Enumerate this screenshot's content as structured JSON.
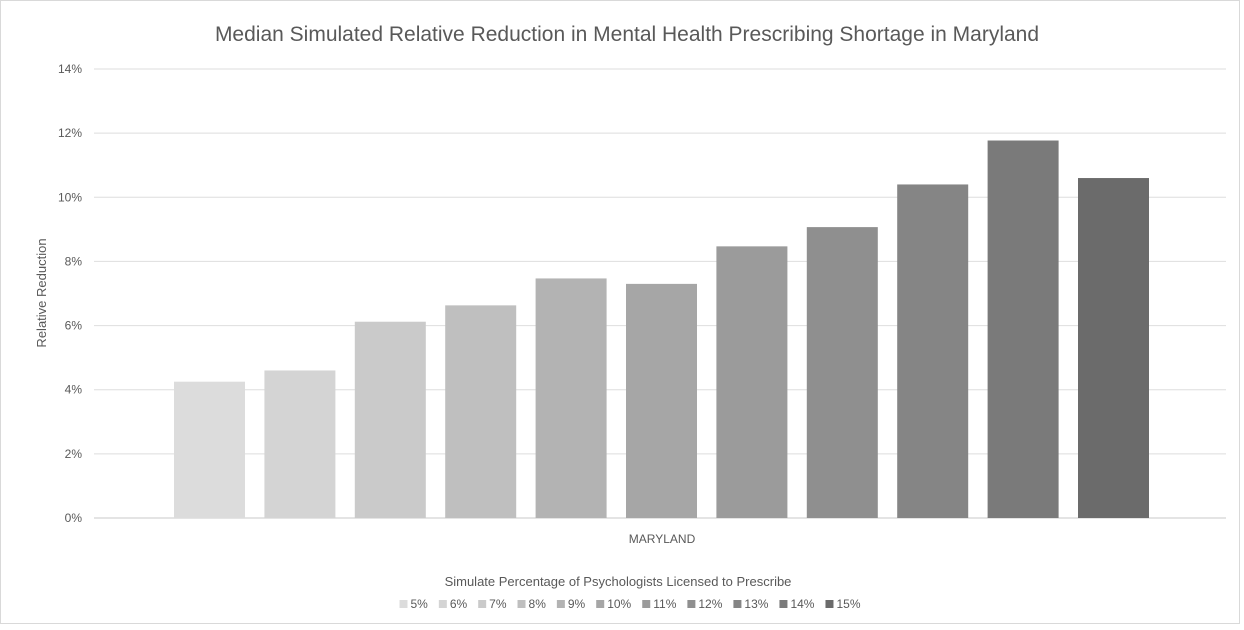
{
  "chart_data": {
    "type": "bar",
    "title": "Median Simulated Relative Reduction in Mental Health Prescribing Shortage in Maryland",
    "xlabel": "MARYLAND",
    "ylabel": "Relative Reduction",
    "legend_title": "Simulate Percentage of Psychologists Licensed to Prescribe",
    "legend_position": "bottom",
    "grid": true,
    "ylim": [
      0,
      14
    ],
    "y_ticks": [
      "0%",
      "2%",
      "4%",
      "6%",
      "8%",
      "10%",
      "12%",
      "14%"
    ],
    "categories": [
      "MARYLAND"
    ],
    "series": [
      {
        "name": "5%",
        "values": [
          4.25
        ],
        "color": "#dcdcdc"
      },
      {
        "name": "6%",
        "values": [
          4.6
        ],
        "color": "#d4d4d4"
      },
      {
        "name": "7%",
        "values": [
          6.12
        ],
        "color": "#cacaca"
      },
      {
        "name": "8%",
        "values": [
          6.63
        ],
        "color": "#bfbfbf"
      },
      {
        "name": "9%",
        "values": [
          7.47
        ],
        "color": "#b3b3b3"
      },
      {
        "name": "10%",
        "values": [
          7.3
        ],
        "color": "#a6a6a6"
      },
      {
        "name": "11%",
        "values": [
          8.47
        ],
        "color": "#9b9b9b"
      },
      {
        "name": "12%",
        "values": [
          9.07
        ],
        "color": "#8f8f8f"
      },
      {
        "name": "13%",
        "values": [
          10.4
        ],
        "color": "#858585"
      },
      {
        "name": "14%",
        "values": [
          11.77
        ],
        "color": "#7a7a7a"
      },
      {
        "name": "15%",
        "values": [
          10.6
        ],
        "color": "#6b6b6b"
      }
    ]
  }
}
